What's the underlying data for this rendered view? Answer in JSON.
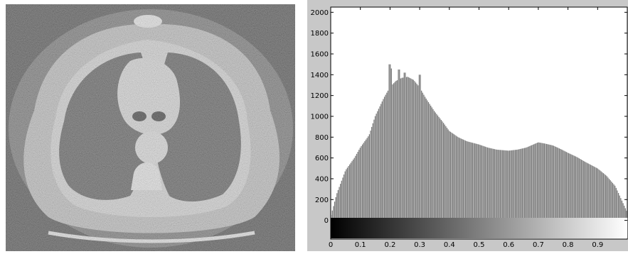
{
  "chart_data": {
    "type": "bar",
    "title": "",
    "xlabel": "",
    "ylabel": "",
    "xlim": [
      0,
      1
    ],
    "ylim": [
      -180,
      2050
    ],
    "x_ticks": [
      0,
      0.1,
      0.2,
      0.3,
      0.4,
      0.5,
      0.6,
      0.7,
      0.8,
      0.9
    ],
    "x_tick_labels": [
      "0",
      "0.1",
      "0.2",
      "0.3",
      "0.4",
      "0.5",
      "0.6",
      "0.7",
      "0.8",
      "0.9"
    ],
    "y_ticks": [
      0,
      200,
      400,
      600,
      800,
      1000,
      1200,
      1400,
      1600,
      1800,
      2000
    ],
    "y_tick_labels": [
      "0",
      "200",
      "400",
      "600",
      "800",
      "1000",
      "1200",
      "1400",
      "1600",
      "1800",
      "2000"
    ],
    "grid": false,
    "colorbar": "grayscale 0 to 1 below x-axis",
    "bin_profile": {
      "x": [
        0.0,
        0.02,
        0.05,
        0.08,
        0.1,
        0.13,
        0.15,
        0.18,
        0.2,
        0.22,
        0.24,
        0.26,
        0.28,
        0.3,
        0.32,
        0.35,
        0.38,
        0.4,
        0.43,
        0.46,
        0.5,
        0.53,
        0.56,
        0.6,
        0.63,
        0.66,
        0.7,
        0.72,
        0.75,
        0.78,
        0.8,
        0.83,
        0.86,
        0.9,
        0.93,
        0.96,
        1.0
      ],
      "y": [
        30,
        250,
        480,
        600,
        700,
        820,
        1000,
        1180,
        1280,
        1340,
        1370,
        1380,
        1350,
        1280,
        1180,
        1050,
        940,
        860,
        800,
        760,
        730,
        700,
        680,
        670,
        680,
        700,
        750,
        740,
        720,
        680,
        650,
        610,
        560,
        500,
        430,
        330,
        80
      ]
    },
    "spikes": [
      [
        0.2,
        1500
      ],
      [
        0.205,
        1460
      ],
      [
        0.23,
        1450
      ],
      [
        0.25,
        1420
      ],
      [
        0.3,
        1400
      ]
    ],
    "bar_count": 256
  }
}
